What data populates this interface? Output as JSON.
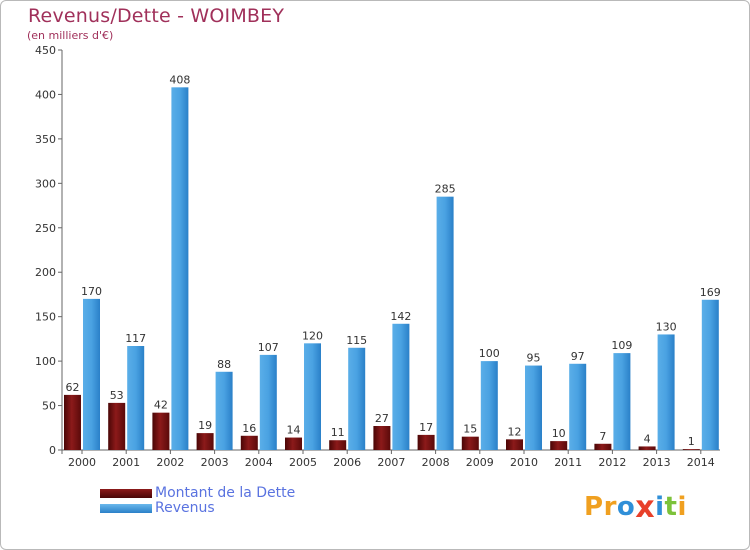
{
  "header": {
    "title": "Revenus/Dette - WOIMBEY",
    "subtitle": "(en milliers d'€)"
  },
  "legend": {
    "items": [
      {
        "label": "Montant de la Dette",
        "color": "#7a0f0f"
      },
      {
        "label": "Revenus",
        "color": "#3a95dc"
      }
    ]
  },
  "logo": {
    "text": "Proxiti",
    "letters": [
      {
        "char": "P",
        "color": "#f0a020"
      },
      {
        "char": "r",
        "color": "#f0a020"
      },
      {
        "char": "o",
        "color": "#2f8fd8"
      },
      {
        "char": "x",
        "color": "#e8402a"
      },
      {
        "char": "i",
        "color": "#2f8fd8"
      },
      {
        "char": "t",
        "color": "#7cc23a"
      },
      {
        "char": "i",
        "color": "#f0a020"
      }
    ]
  },
  "chart_data": {
    "type": "bar",
    "categories": [
      "2000",
      "2001",
      "2002",
      "2003",
      "2004",
      "2005",
      "2006",
      "2007",
      "2008",
      "2009",
      "2010",
      "2011",
      "2012",
      "2013",
      "2014"
    ],
    "series": [
      {
        "name": "Montant de la Dette",
        "color": "#7a0f0f",
        "values": [
          62,
          53,
          42,
          19,
          16,
          14,
          11,
          27,
          17,
          15,
          12,
          10,
          7,
          4,
          1
        ]
      },
      {
        "name": "Revenus",
        "color": "#3a95dc",
        "values": [
          170,
          117,
          408,
          88,
          107,
          120,
          115,
          142,
          285,
          100,
          95,
          97,
          109,
          130,
          169
        ]
      }
    ],
    "title": "Revenus/Dette - WOIMBEY",
    "ylabel": "(en milliers d'€)",
    "ylim": [
      0,
      450
    ],
    "yticks": [
      0,
      50,
      100,
      150,
      200,
      250,
      300,
      350,
      400,
      450
    ],
    "grid": false,
    "legend_position": "bottom-left"
  }
}
